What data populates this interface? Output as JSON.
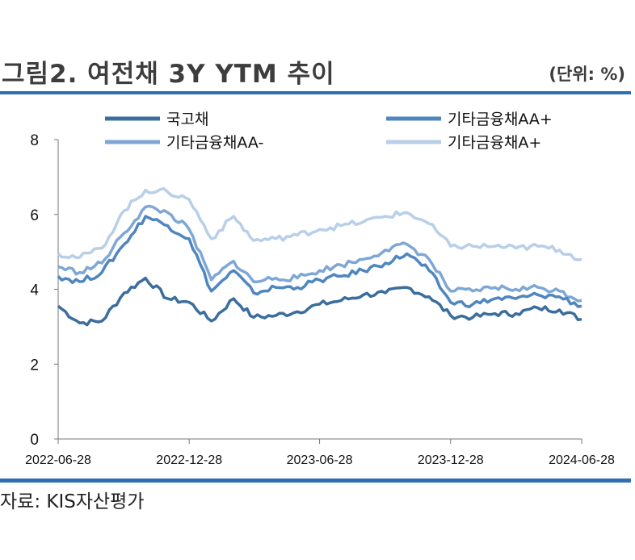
{
  "header": {
    "title": "그림2. 여전채 3Y YTM 추이",
    "unit": "(단위: %)"
  },
  "footer": {
    "source": "자료: KIS자산평가"
  },
  "chart_data": {
    "type": "line",
    "title": "",
    "xlabel": "",
    "ylabel": "",
    "ylim": [
      0,
      8
    ],
    "yticks": [
      "0",
      "2",
      "4",
      "6",
      "8"
    ],
    "xticks": [
      "2022-06-28",
      "2022-12-28",
      "2023-06-28",
      "2023-12-28",
      "2024-06-28"
    ],
    "x": [
      "2022-06-28",
      "2022-07-28",
      "2022-08-28",
      "2022-09-28",
      "2022-10-28",
      "2022-11-28",
      "2022-12-28",
      "2023-01-28",
      "2023-02-28",
      "2023-03-28",
      "2023-04-28",
      "2023-05-28",
      "2023-06-28",
      "2023-07-28",
      "2023-08-28",
      "2023-09-28",
      "2023-10-28",
      "2023-11-28",
      "2023-12-28",
      "2024-01-28",
      "2024-02-28",
      "2024-03-28",
      "2024-04-28",
      "2024-05-28",
      "2024-06-28"
    ],
    "legend_position": "top",
    "series": [
      {
        "name": "국고채",
        "color": "#3b6d9e",
        "values": [
          3.55,
          3.1,
          3.15,
          3.9,
          4.3,
          3.75,
          3.65,
          3.15,
          3.75,
          3.25,
          3.3,
          3.4,
          3.6,
          3.7,
          3.85,
          3.9,
          4.05,
          3.8,
          3.3,
          3.25,
          3.35,
          3.35,
          3.5,
          3.45,
          3.2
        ]
      },
      {
        "name": "기타금융채AA+",
        "color": "#4f86c0",
        "values": [
          4.35,
          4.2,
          4.45,
          5.2,
          5.95,
          5.7,
          5.35,
          3.95,
          4.5,
          3.9,
          4.05,
          4.05,
          4.25,
          4.35,
          4.5,
          4.7,
          4.95,
          4.5,
          3.65,
          3.6,
          3.75,
          3.75,
          3.85,
          3.8,
          3.55
        ]
      },
      {
        "name": "기타금융채AA-",
        "color": "#7ea7d6",
        "values": [
          4.6,
          4.45,
          4.7,
          5.5,
          6.2,
          6.05,
          5.6,
          4.25,
          4.75,
          4.2,
          4.3,
          4.3,
          4.5,
          4.65,
          4.8,
          5.05,
          5.2,
          4.8,
          3.95,
          3.95,
          4.05,
          4.0,
          4.05,
          3.95,
          3.7
        ]
      },
      {
        "name": "기타금융채A+",
        "color": "#b9cfe8",
        "values": [
          4.95,
          4.85,
          5.1,
          6.1,
          6.65,
          6.6,
          6.4,
          5.35,
          5.95,
          5.3,
          5.35,
          5.45,
          5.6,
          5.7,
          5.8,
          5.95,
          6.05,
          5.75,
          5.15,
          5.15,
          5.15,
          5.1,
          5.15,
          5.05,
          4.8
        ]
      }
    ]
  }
}
